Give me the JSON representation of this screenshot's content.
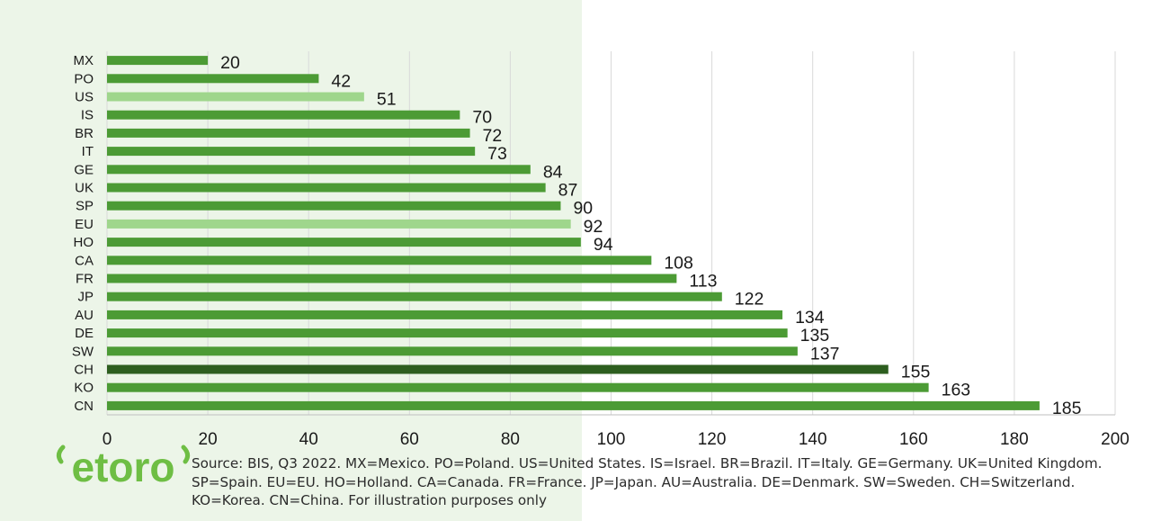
{
  "chart_data": {
    "type": "bar",
    "orientation": "horizontal",
    "categories": [
      "MX",
      "PO",
      "US",
      "IS",
      "BR",
      "IT",
      "GE",
      "UK",
      "SP",
      "EU",
      "HO",
      "CA",
      "FR",
      "JP",
      "AU",
      "DE",
      "SW",
      "CH",
      "KO",
      "CN"
    ],
    "values": [
      20,
      42,
      51,
      70,
      72,
      73,
      84,
      87,
      90,
      92,
      94,
      108,
      113,
      122,
      134,
      135,
      137,
      155,
      163,
      185
    ],
    "highlight": {
      "US": "light",
      "EU": "light",
      "CH": "dark"
    },
    "xlim": [
      0,
      200
    ],
    "xticks": [
      0,
      20,
      40,
      60,
      80,
      100,
      120,
      140,
      160,
      180,
      200
    ],
    "grid": true,
    "data_labels": true,
    "title": "",
    "xlabel": "",
    "ylabel": ""
  },
  "colors": {
    "bar": "#4c9b35",
    "bar_light": "#9fd68c",
    "bar_dark": "#2d5e1f",
    "panel_bg": "#ecf5e8",
    "brand": "#6ebe44"
  },
  "logo": {
    "text": "etoro",
    "icon": "etoro-logo"
  },
  "footer": {
    "source_text": "Source: BIS, Q3 2022. MX=Mexico. PO=Poland. US=United States. IS=Israel. BR=Brazil. IT=Italy. GE=Germany. UK=United Kingdom. SP=Spain. EU=EU. HO=Holland. CA=Canada. FR=France. JP=Japan. AU=Australia. DE=Denmark. SW=Sweden. CH=Switzerland. KO=Korea. CN=China. For illustration purposes only"
  }
}
